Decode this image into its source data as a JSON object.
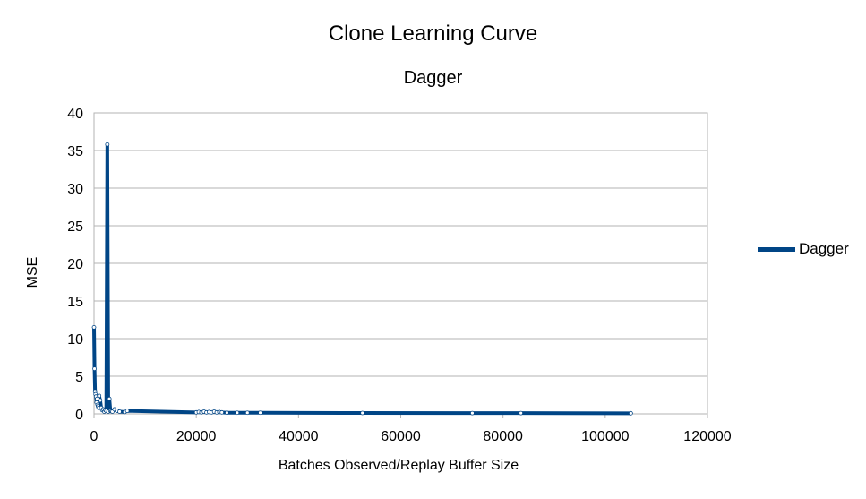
{
  "chart_data": {
    "type": "line",
    "title": "Clone Learning Curve",
    "subtitle": "Dagger",
    "xlabel": "Batches Observed/Replay Buffer Size",
    "ylabel": "MSE",
    "xlim": [
      0,
      120000
    ],
    "ylim": [
      0,
      40
    ],
    "x_ticks": [
      0,
      20000,
      40000,
      60000,
      80000,
      100000,
      120000
    ],
    "y_ticks": [
      0,
      5,
      10,
      15,
      20,
      25,
      30,
      35,
      40
    ],
    "grid": true,
    "legend_position": "right",
    "series": [
      {
        "name": "Dagger",
        "color": "#004586",
        "x": [
          0,
          100,
          200,
          300,
          400,
          500,
          600,
          700,
          800,
          900,
          1000,
          1200,
          1400,
          1600,
          1800,
          2000,
          2200,
          2400,
          2600,
          2800,
          3000,
          3200,
          3400,
          3600,
          4000,
          4500,
          5000,
          6000,
          6500,
          20000,
          20500,
          21000,
          21500,
          22000,
          22500,
          23000,
          23500,
          24000,
          24500,
          25000,
          26000,
          28000,
          30000,
          32500,
          52500,
          74000,
          83500,
          105000
        ],
        "y": [
          11.5,
          6.0,
          3.0,
          2.6,
          2.3,
          1.5,
          2.0,
          1.2,
          1.0,
          0.8,
          2.4,
          1.8,
          0.8,
          0.5,
          0.6,
          0.3,
          0.5,
          0.4,
          35.8,
          0.3,
          2.0,
          0.4,
          0.35,
          0.3,
          0.6,
          0.4,
          0.3,
          0.25,
          0.4,
          0.2,
          0.25,
          0.2,
          0.3,
          0.2,
          0.25,
          0.2,
          0.3,
          0.2,
          0.25,
          0.2,
          0.15,
          0.15,
          0.15,
          0.15,
          0.12,
          0.1,
          0.1,
          0.08
        ]
      }
    ]
  }
}
